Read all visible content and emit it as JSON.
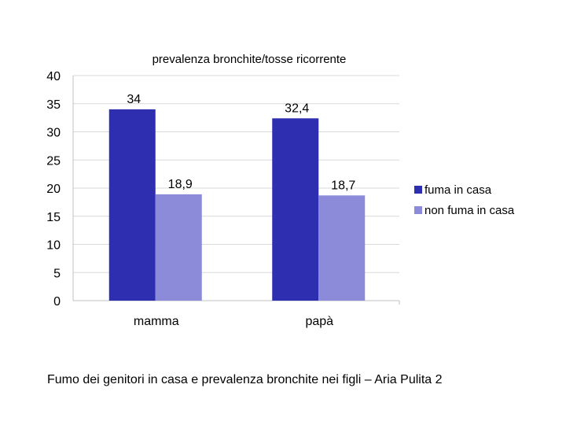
{
  "chart_data": {
    "type": "bar",
    "title": "prevalenza bronchite/tosse ricorrente",
    "categories": [
      "mamma",
      "papà"
    ],
    "series": [
      {
        "name": "fuma in casa",
        "values": [
          34,
          32.4
        ],
        "labels": [
          "34",
          "32,4"
        ],
        "color": "#2e2eb0"
      },
      {
        "name": "non fuma in casa",
        "values": [
          18.9,
          18.7
        ],
        "labels": [
          "18,9",
          "18,7"
        ],
        "color": "#8b8bd9"
      }
    ],
    "ylim": [
      0,
      40
    ],
    "yticks": [
      0,
      5,
      10,
      15,
      20,
      25,
      30,
      35,
      40
    ],
    "grid": true,
    "legend": "right",
    "xlabel": "",
    "ylabel": ""
  },
  "caption": "Fumo dei genitori in casa e prevalenza bronchite nei figli – Aria Pulita 2"
}
